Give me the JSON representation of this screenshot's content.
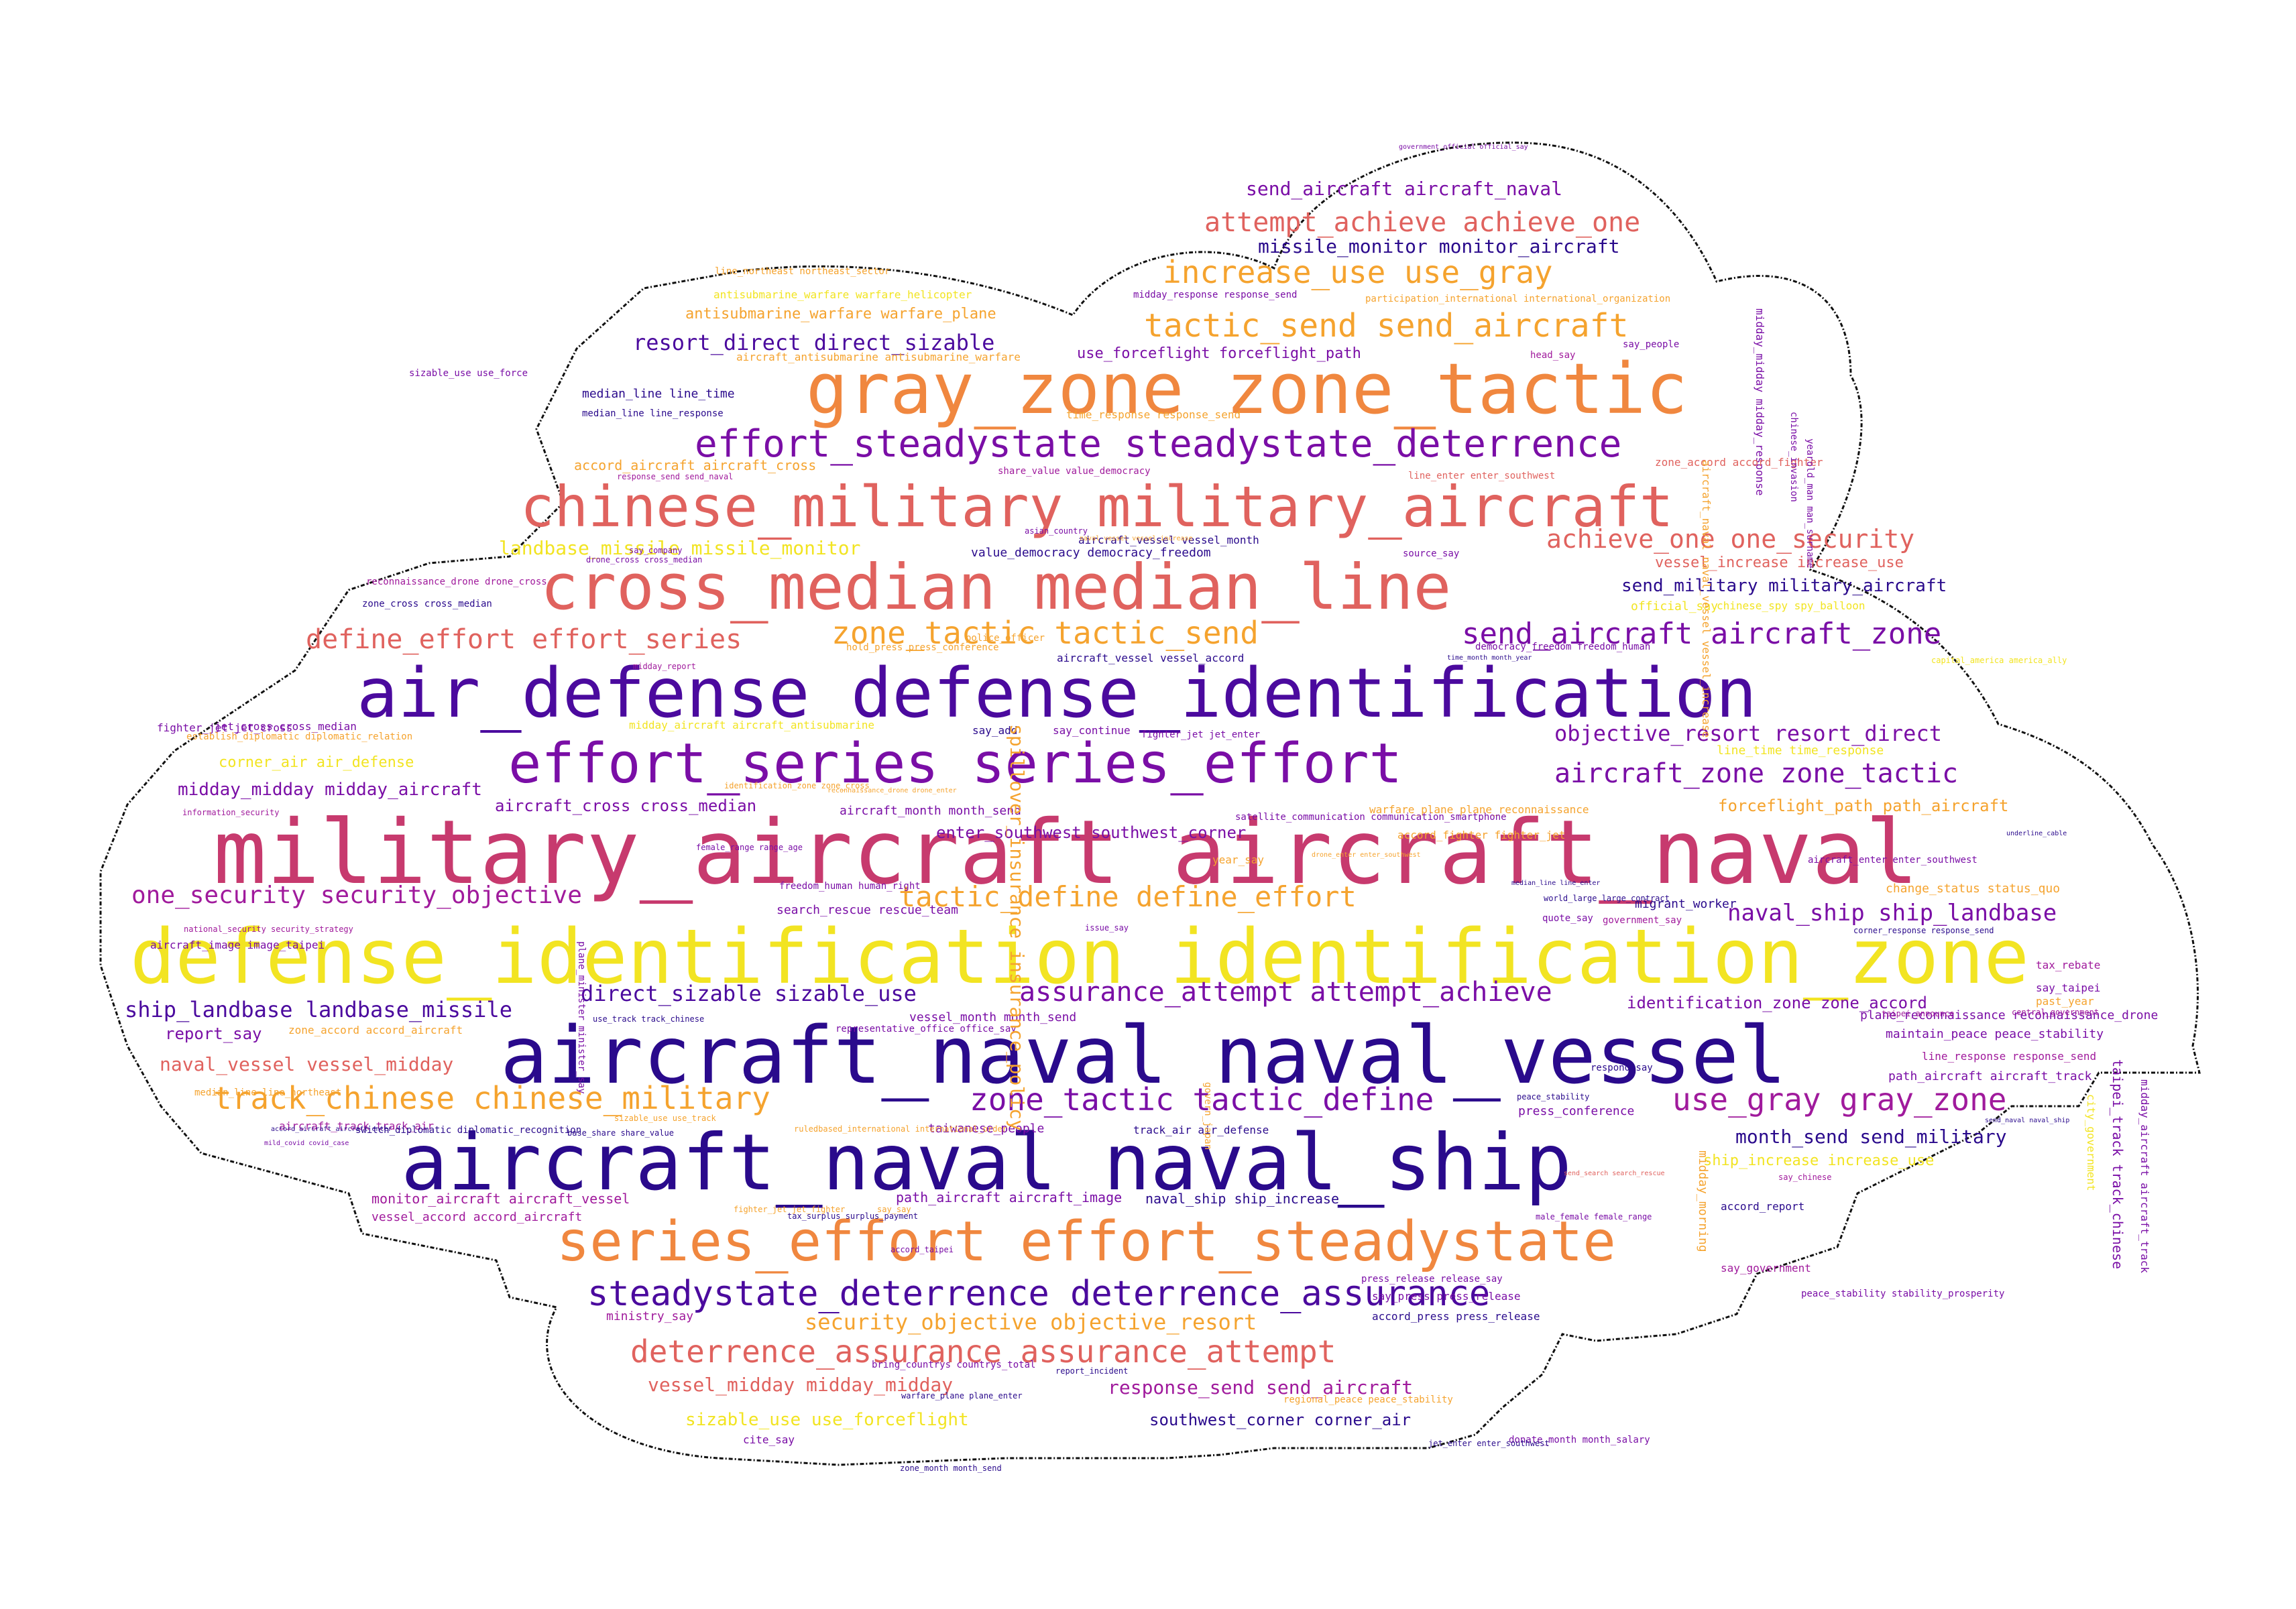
{
  "palette": {
    "indigo": "#2a0a8c",
    "deep_purple": "#4b0a9e",
    "purple": "#7a0ea6",
    "magenta": "#a01a9c",
    "rose": "#c73a6e",
    "salmon": "#e0625e",
    "orange": "#f0873f",
    "amber": "#f5a32e",
    "yellow": "#f2e422",
    "outline": "#111111"
  },
  "words": [
    {
      "text": "military_aircraft aircraft_naval",
      "color": "rose"
    },
    {
      "text": "defense_identification identification_zone",
      "color": "yellow"
    },
    {
      "text": "aircraft_naval naval_vessel",
      "color": "indigo"
    },
    {
      "text": "air_defense defense_identification",
      "color": "deep_purple"
    },
    {
      "text": "aircraft_naval naval_ship",
      "color": "indigo"
    },
    {
      "text": "gray_zone zone_tactic",
      "color": "orange"
    },
    {
      "text": "cross_median median_line",
      "color": "salmon"
    },
    {
      "text": "chinese_military military_aircraft",
      "color": "salmon"
    },
    {
      "text": "series_effort effort_steadystate",
      "color": "orange"
    },
    {
      "text": "effort_series series_effort",
      "color": "purple"
    },
    {
      "text": "effort_steadystate steadystate_deterrence",
      "color": "purple"
    },
    {
      "text": "steadystate_deterrence deterrence_assurance",
      "color": "deep_purple"
    },
    {
      "text": "deterrence_assurance assurance_attempt",
      "color": "salmon"
    },
    {
      "text": "track_chinese chinese_military",
      "color": "amber"
    },
    {
      "text": "zone_tactic tactic_define",
      "color": "purple"
    },
    {
      "text": "use_gray gray_zone",
      "color": "magenta"
    },
    {
      "text": "zone_tactic tactic_send",
      "color": "amber"
    },
    {
      "text": "send_aircraft aircraft_zone",
      "color": "purple"
    },
    {
      "text": "tactic_define define_effort",
      "color": "amber"
    },
    {
      "text": "assurance_attempt attempt_achieve",
      "color": "purple"
    },
    {
      "text": "tactic_send send_aircraft",
      "color": "amber"
    },
    {
      "text": "increase_use use_gray",
      "color": "amber"
    },
    {
      "text": "attempt_achieve achieve_one",
      "color": "salmon"
    },
    {
      "text": "aircraft_zone zone_tactic",
      "color": "purple"
    },
    {
      "text": "define_effort effort_series",
      "color": "salmon"
    },
    {
      "text": "one_security security_objective",
      "color": "magenta"
    },
    {
      "text": "achieve_one one_security",
      "color": "salmon"
    },
    {
      "text": "naval_ship ship_landbase",
      "color": "purple"
    },
    {
      "text": "ship_landbase landbase_missile",
      "color": "deep_purple"
    },
    {
      "text": "direct_sizable sizable_use",
      "color": "deep_purple"
    },
    {
      "text": "resort_direct direct_sizable",
      "color": "deep_purple"
    },
    {
      "text": "objective_resort resort_direct",
      "color": "purple"
    },
    {
      "text": "security_objective objective_resort",
      "color": "amber"
    },
    {
      "text": "vessel_midday midday_midday",
      "color": "salmon"
    },
    {
      "text": "response_send send_aircraft",
      "color": "magenta"
    },
    {
      "text": "send_aircraft aircraft_naval",
      "color": "purple"
    },
    {
      "text": "missile_monitor monitor_aircraft",
      "color": "indigo"
    },
    {
      "text": "month_send send_military",
      "color": "indigo"
    },
    {
      "text": "landbase_missile missile_monitor",
      "color": "yellow"
    },
    {
      "text": "naval_vessel vessel_midday",
      "color": "salmon"
    },
    {
      "text": "midday_midday midday_aircraft",
      "color": "purple"
    },
    {
      "text": "send_military military_aircraft",
      "color": "indigo"
    },
    {
      "text": "identification_zone zone_accord",
      "color": "purple"
    },
    {
      "text": "enter_southwest southwest_corner",
      "color": "purple"
    },
    {
      "text": "forceflight_path path_aircraft",
      "color": "amber"
    },
    {
      "text": "sizable_use use_forceflight",
      "color": "yellow"
    },
    {
      "text": "southwest_corner corner_air",
      "color": "indigo"
    },
    {
      "text": "ship_increase increase_use",
      "color": "yellow"
    },
    {
      "text": "use_forceflight forceflight_path",
      "color": "purple"
    },
    {
      "text": "antisubmarine_warfare warfare_plane",
      "color": "amber"
    },
    {
      "text": "aircraft_cross cross_median",
      "color": "purple"
    },
    {
      "text": "corner_air air_defense",
      "color": "yellow"
    },
    {
      "text": "report_say",
      "color": "purple"
    },
    {
      "text": "median_line line_time",
      "color": "indigo"
    },
    {
      "text": "accord_aircraft aircraft_cross",
      "color": "amber"
    },
    {
      "text": "vessel_increase increase_use",
      "color": "salmon"
    },
    {
      "text": "value_democracy democracy_freedom",
      "color": "indigo"
    },
    {
      "text": "search_rescue rescue_team",
      "color": "purple"
    },
    {
      "text": "monitor_aircraft aircraft_vessel",
      "color": "magenta"
    },
    {
      "text": "vessel_month month_send",
      "color": "purple"
    },
    {
      "text": "path_aircraft aircraft_image",
      "color": "purple"
    },
    {
      "text": "naval_ship ship_increase",
      "color": "indigo"
    },
    {
      "text": "vessel_accord accord_aircraft",
      "color": "magenta"
    },
    {
      "text": "maintain_peace peace_stability",
      "color": "purple"
    },
    {
      "text": "taipei_track track_chinese",
      "color": "purple"
    },
    {
      "text": "midday_aircraft aircraft_track",
      "color": "purple"
    },
    {
      "text": "midday_midday midday_response",
      "color": "purple"
    },
    {
      "text": "path_aircraft aircraft_track",
      "color": "purple"
    },
    {
      "text": "plane_reconnaissance reconnaissance_drone",
      "color": "purple"
    },
    {
      "text": "aircraft_month month_send",
      "color": "purple"
    },
    {
      "text": "jet_cross cross_median",
      "color": "purple"
    },
    {
      "text": "fighter_jet jet_cross",
      "color": "purple"
    },
    {
      "text": "say_press press_release",
      "color": "purple"
    },
    {
      "text": "accord_press press_release",
      "color": "indigo"
    },
    {
      "text": "press_conference",
      "color": "purple"
    },
    {
      "text": "official_say",
      "color": "yellow"
    },
    {
      "text": "migrant_worker",
      "color": "indigo"
    },
    {
      "text": "taiwanese_people",
      "color": "purple"
    },
    {
      "text": "ministry_say",
      "color": "magenta"
    },
    {
      "text": "cite_say",
      "color": "purple"
    },
    {
      "text": "say_taipei",
      "color": "purple"
    },
    {
      "text": "say_add",
      "color": "indigo"
    },
    {
      "text": "say_continue",
      "color": "purple"
    },
    {
      "text": "year_say",
      "color": "amber"
    },
    {
      "text": "accord_report",
      "color": "indigo"
    },
    {
      "text": "say_government",
      "color": "magenta"
    },
    {
      "text": "track_air air_defense",
      "color": "indigo"
    },
    {
      "text": "line_time time_response",
      "color": "yellow"
    },
    {
      "text": "zone_accord accord_fighter",
      "color": "salmon"
    },
    {
      "text": "change_status status_quo",
      "color": "amber"
    },
    {
      "text": "line_response response_send",
      "color": "magenta"
    },
    {
      "text": "aircraft_vessel vessel_accord",
      "color": "indigo"
    },
    {
      "text": "aircraft_vessel vessel_month",
      "color": "indigo"
    },
    {
      "text": "use_track track_chinese",
      "color": "indigo"
    },
    {
      "text": "zone_cross cross_median",
      "color": "indigo"
    },
    {
      "text": "median_line line_response",
      "color": "indigo"
    },
    {
      "text": "sizable_use use_force",
      "color": "purple"
    },
    {
      "text": "aircraft_antisubmarine antisubmarine_warfare",
      "color": "amber"
    },
    {
      "text": "antisubmarine_warfare warfare_helicopter",
      "color": "yellow"
    },
    {
      "text": "line_northeast northeast_sector",
      "color": "amber"
    },
    {
      "text": "midday_response response_send",
      "color": "purple"
    },
    {
      "text": "participation_international international_organization",
      "color": "amber"
    },
    {
      "text": "time_response response_send",
      "color": "amber"
    },
    {
      "text": "share_value value_democracy",
      "color": "magenta"
    },
    {
      "text": "line_enter enter_southwest",
      "color": "salmon"
    },
    {
      "text": "head_say",
      "color": "magenta"
    },
    {
      "text": "say_people",
      "color": "purple"
    },
    {
      "text": "source_say",
      "color": "purple"
    },
    {
      "text": "warfare_plane plane_reconnaissance",
      "color": "amber"
    },
    {
      "text": "accord_fighter fighter_jet",
      "color": "amber"
    },
    {
      "text": "midday_aircraft aircraft_antisubmarine",
      "color": "yellow"
    },
    {
      "text": "establish_diplomatic diplomatic_relation",
      "color": "amber"
    },
    {
      "text": "information_security",
      "color": "magenta"
    },
    {
      "text": "national_security security_strategy",
      "color": "magenta"
    },
    {
      "text": "aircraft_image image_taipei",
      "color": "purple"
    },
    {
      "text": "zone_accord accord_aircraft",
      "color": "amber"
    },
    {
      "text": "median_line line_northeast",
      "color": "amber"
    },
    {
      "text": "aircraft_track track_air",
      "color": "magenta"
    },
    {
      "text": "issue_say",
      "color": "purple"
    },
    {
      "text": "quote_say",
      "color": "purple"
    },
    {
      "text": "past_year",
      "color": "amber"
    },
    {
      "text": "tax_rebate",
      "color": "magenta"
    },
    {
      "text": "central_government",
      "color": "magenta"
    },
    {
      "text": "press_release release_say",
      "color": "purple"
    },
    {
      "text": "peace_stability stability_prosperity",
      "color": "purple"
    },
    {
      "text": "democracy_freedom freedom_human",
      "color": "purple"
    },
    {
      "text": "chinese_spy spy_balloon",
      "color": "yellow"
    },
    {
      "text": "bring_countrys countrys_total",
      "color": "purple"
    },
    {
      "text": "representative_office office_say",
      "color": "purple"
    },
    {
      "text": "base_share share_value",
      "color": "indigo"
    },
    {
      "text": "switch_diplomatic diplomatic_recognition",
      "color": "indigo"
    },
    {
      "text": "hold_press press_conference",
      "color": "amber"
    },
    {
      "text": "reconnaissance_drone drone_cross",
      "color": "magenta"
    },
    {
      "text": "drone_cross cross_median",
      "color": "purple"
    },
    {
      "text": "say_company",
      "color": "purple"
    },
    {
      "text": "response_send send_naval",
      "color": "magenta"
    },
    {
      "text": "freedom_human human_right",
      "color": "purple"
    },
    {
      "text": "yearold_man man_surname",
      "color": "purple"
    },
    {
      "text": "chinese_invasion",
      "color": "purple"
    },
    {
      "text": "spillover_insurance insurance_policy",
      "color": "amber"
    },
    {
      "text": "fighter_jet jet_enter",
      "color": "purple"
    },
    {
      "text": "satellite_communication communication_smartphone",
      "color": "purple"
    },
    {
      "text": "identification_zone zone_cross",
      "color": "amber"
    },
    {
      "text": "donate_month month_salary",
      "color": "purple"
    },
    {
      "text": "zone_month month_send",
      "color": "indigo"
    },
    {
      "text": "government_official official_say",
      "color": "purple"
    },
    {
      "text": "taipei_announce",
      "color": "magenta"
    },
    {
      "text": "aircraft_enter enter_southwest",
      "color": "purple"
    },
    {
      "text": "regional_peace peace_stability",
      "color": "amber"
    },
    {
      "text": "warfare_plane plane_enter",
      "color": "indigo"
    },
    {
      "text": "report_incident",
      "color": "indigo"
    },
    {
      "text": "jet_enter enter_southwest",
      "color": "indigo"
    },
    {
      "text": "asian_country",
      "color": "purple"
    },
    {
      "text": "ruledbased_international international_order",
      "color": "amber"
    },
    {
      "text": "corner_response response_send",
      "color": "indigo"
    },
    {
      "text": "peace_stability",
      "color": "indigo"
    },
    {
      "text": "female_range range_age",
      "color": "purple"
    },
    {
      "text": "male_female female_range",
      "color": "purple"
    },
    {
      "text": "send_search search_rescue",
      "color": "salmon"
    },
    {
      "text": "median_line line_enter",
      "color": "indigo"
    },
    {
      "text": "world_large large_contract",
      "color": "indigo"
    },
    {
      "text": "government_say",
      "color": "magenta"
    },
    {
      "text": "say_chinese",
      "color": "magenta"
    },
    {
      "text": "respond_say",
      "color": "indigo"
    },
    {
      "text": "underline_cable",
      "color": "indigo"
    },
    {
      "text": "accord_aircraft aircraft_enter",
      "color": "indigo"
    },
    {
      "text": "mild_covid covid_case",
      "color": "purple"
    },
    {
      "text": "midday_report",
      "color": "magenta"
    },
    {
      "text": "sizable_use use_track",
      "color": "amber"
    },
    {
      "text": "tax_surplus surplus_payment",
      "color": "indigo"
    },
    {
      "text": "time_month month_year",
      "color": "indigo"
    },
    {
      "text": "reconnaissance_drone drone_enter",
      "color": "amber"
    },
    {
      "text": "say_say",
      "color": "amber"
    },
    {
      "text": "police_officer",
      "color": "amber"
    },
    {
      "text": "plane_minister minister_say",
      "color": "purple"
    },
    {
      "text": "city_government",
      "color": "yellow"
    },
    {
      "text": "midday_morning",
      "color": "amber"
    },
    {
      "text": "fighter_jet jet_fighter",
      "color": "amber"
    },
    {
      "text": "drone_enter enter_southwest",
      "color": "amber"
    },
    {
      "text": "accord_taipei",
      "color": "purple"
    },
    {
      "text": "govern_japan",
      "color": "amber"
    },
    {
      "text": "send_naval naval_ship",
      "color": "indigo"
    },
    {
      "text": "capital_america america_ally",
      "color": "yellow"
    },
    {
      "text": "aircraft_naval naval_vessel vessel_increase",
      "color": "amber"
    },
    {
      "text": "naval_vessel vessel_increase",
      "color": "amber"
    }
  ]
}
